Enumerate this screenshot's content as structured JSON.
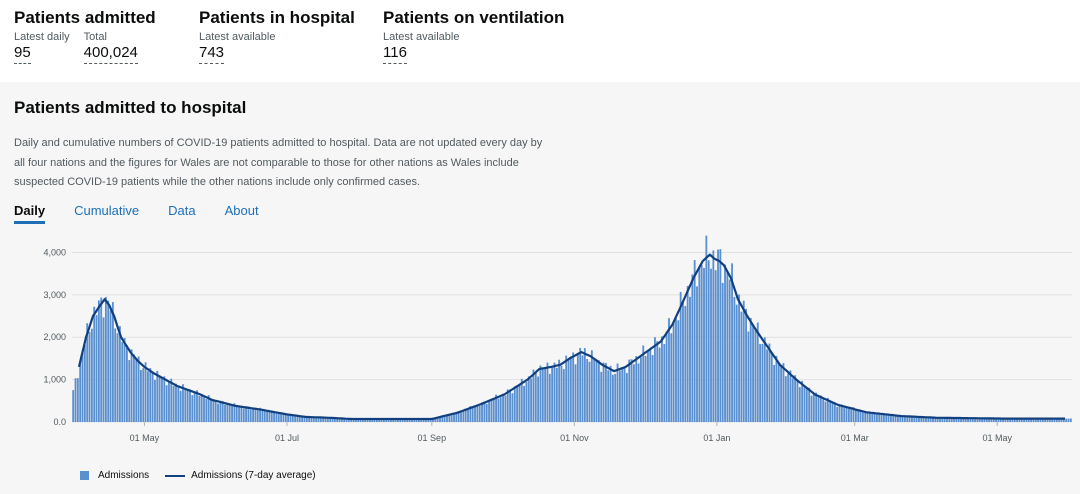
{
  "headline": {
    "groups": [
      {
        "title": "Patients admitted",
        "metrics": [
          {
            "label": "Latest daily",
            "value": "95"
          },
          {
            "label": "Total",
            "value": "400,024"
          }
        ]
      },
      {
        "title": "Patients in hospital",
        "metrics": [
          {
            "label": "Latest available",
            "value": "743"
          }
        ]
      },
      {
        "title": "Patients on ventilation",
        "metrics": [
          {
            "label": "Latest available",
            "value": "116"
          }
        ]
      }
    ]
  },
  "card": {
    "title": "Patients admitted to hospital",
    "description": "Daily and cumulative numbers of COVID-19 patients admitted to hospital. Data are not updated every day by all four nations and the figures for Wales are not comparable to those for other nations as Wales include suspected COVID-19 patients while the other nations include only confirmed cases.",
    "tabs": [
      "Daily",
      "Cumulative",
      "Data",
      "About"
    ]
  },
  "colors": {
    "bar": "#5a8fd0",
    "line": "#12407f",
    "grid": "#e1e1e1",
    "tab_active": "#1d70b8"
  },
  "chart_data": {
    "type": "bar",
    "title": "Patients admitted to hospital",
    "x_tick_labels": [
      "01 May",
      "01 Jul",
      "01 Sep",
      "01 Nov",
      "01 Jan",
      "01 Mar",
      "01 May"
    ],
    "x_tick_days": [
      31,
      92,
      154,
      215,
      276,
      335,
      396
    ],
    "x_range_days": [
      0,
      428
    ],
    "y_tick_labels": [
      "0.0",
      "1,000",
      "2,000",
      "3,000",
      "4,000"
    ],
    "ylim": [
      0,
      4200
    ],
    "anchor_days": [
      0,
      3,
      6,
      9,
      12,
      14,
      16,
      18,
      21,
      25,
      28,
      31,
      35,
      40,
      45,
      50,
      55,
      60,
      70,
      80,
      92,
      100,
      110,
      120,
      130,
      140,
      154,
      165,
      175,
      185,
      195,
      200,
      205,
      209,
      213,
      218,
      222,
      227,
      232,
      237,
      242,
      247,
      252,
      257,
      262,
      266,
      270,
      273,
      275,
      277,
      279,
      282,
      285,
      289,
      293,
      298,
      303,
      310,
      318,
      328,
      340,
      355,
      370,
      385,
      400,
      415,
      428
    ],
    "anchor_values": [
      600,
      1300,
      2000,
      2500,
      2750,
      2900,
      2750,
      2500,
      2000,
      1650,
      1450,
      1300,
      1150,
      1000,
      850,
      750,
      650,
      520,
      380,
      300,
      180,
      120,
      100,
      70,
      70,
      70,
      70,
      220,
      420,
      650,
      1000,
      1250,
      1300,
      1350,
      1500,
      1650,
      1550,
      1350,
      1200,
      1300,
      1500,
      1700,
      1900,
      2300,
      2900,
      3400,
      3800,
      3950,
      3850,
      3800,
      3700,
      3400,
      2900,
      2500,
      2150,
      1750,
      1350,
      1000,
      650,
      400,
      230,
      140,
      100,
      90,
      80,
      80,
      80
    ],
    "series": [
      {
        "name": "Admissions",
        "kind": "bar"
      },
      {
        "name": "Admissions (7-day average)",
        "kind": "line"
      }
    ]
  }
}
